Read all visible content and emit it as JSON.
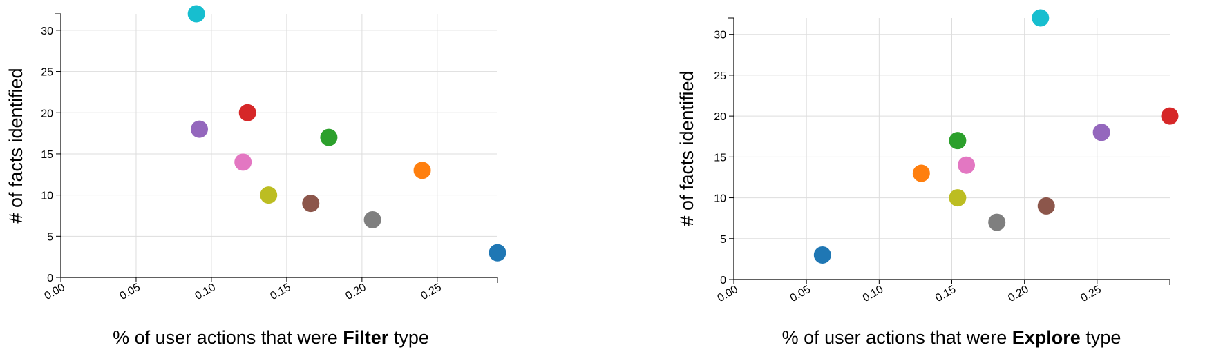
{
  "chart_data": [
    {
      "type": "scatter",
      "title": "",
      "xlabel": {
        "prefix": "% of user actions that were ",
        "bold": "Filter",
        "suffix": " type"
      },
      "ylabel": "# of facts identified",
      "xlim": [
        0,
        0.29
      ],
      "ylim": [
        0,
        32
      ],
      "xticks": [
        "0.00",
        "0.05",
        "0.10",
        "0.15",
        "0.20",
        "0.25"
      ],
      "yticks": [
        "0",
        "5",
        "10",
        "15",
        "20",
        "25",
        "30"
      ],
      "grid": true,
      "points": [
        {
          "x": 0.29,
          "y": 3,
          "color": "#1f77b4"
        },
        {
          "x": 0.24,
          "y": 13,
          "color": "#ff7f0e"
        },
        {
          "x": 0.178,
          "y": 17,
          "color": "#2ca02c"
        },
        {
          "x": 0.124,
          "y": 20,
          "color": "#d62728"
        },
        {
          "x": 0.092,
          "y": 18,
          "color": "#9467bd"
        },
        {
          "x": 0.166,
          "y": 9,
          "color": "#8c564b"
        },
        {
          "x": 0.121,
          "y": 14,
          "color": "#e377c2"
        },
        {
          "x": 0.207,
          "y": 7,
          "color": "#7f7f7f"
        },
        {
          "x": 0.138,
          "y": 10,
          "color": "#bcbd22"
        },
        {
          "x": 0.09,
          "y": 32,
          "color": "#17becf"
        }
      ]
    },
    {
      "type": "scatter",
      "title": "",
      "xlabel": {
        "prefix": "% of user actions that were ",
        "bold": "Explore",
        "suffix": " type"
      },
      "ylabel": "# of facts identified",
      "xlim": [
        0,
        0.3
      ],
      "ylim": [
        0,
        32
      ],
      "xticks": [
        "0.00",
        "0.05",
        "0.10",
        "0.15",
        "0.20",
        "0.25"
      ],
      "yticks": [
        "0",
        "5",
        "10",
        "15",
        "20",
        "25",
        "30"
      ],
      "grid": true,
      "points": [
        {
          "x": 0.061,
          "y": 3,
          "color": "#1f77b4"
        },
        {
          "x": 0.129,
          "y": 13,
          "color": "#ff7f0e"
        },
        {
          "x": 0.154,
          "y": 17,
          "color": "#2ca02c"
        },
        {
          "x": 0.3,
          "y": 20,
          "color": "#d62728"
        },
        {
          "x": 0.253,
          "y": 18,
          "color": "#9467bd"
        },
        {
          "x": 0.215,
          "y": 9,
          "color": "#8c564b"
        },
        {
          "x": 0.16,
          "y": 14,
          "color": "#e377c2"
        },
        {
          "x": 0.181,
          "y": 7,
          "color": "#7f7f7f"
        },
        {
          "x": 0.154,
          "y": 10,
          "color": "#bcbd22"
        },
        {
          "x": 0.211,
          "y": 32,
          "color": "#17becf"
        }
      ]
    }
  ]
}
